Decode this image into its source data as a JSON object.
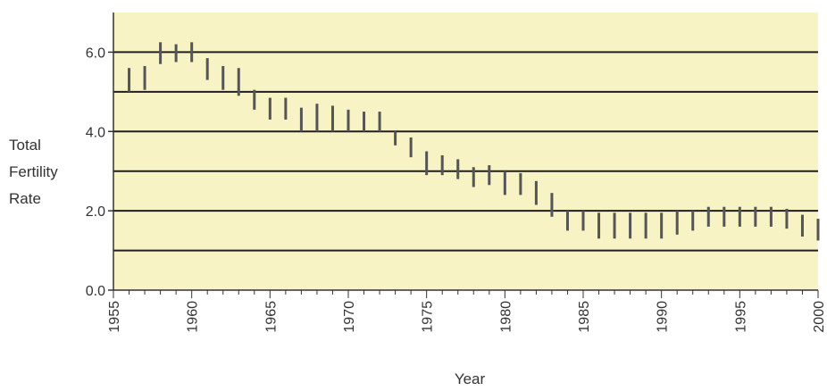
{
  "chart_data": {
    "type": "bar",
    "title": "",
    "xlabel": "Year",
    "ylabel_lines": [
      "Total",
      "Fertility",
      "Rate"
    ],
    "xlim": [
      1955,
      2000
    ],
    "ylim": [
      0,
      7
    ],
    "y_ticks": [
      0,
      2,
      4,
      6
    ],
    "y_tick_labels": [
      "0.0",
      "2.0",
      "4.0",
      "6.0"
    ],
    "x_ticks": [
      1955,
      1960,
      1965,
      1970,
      1975,
      1980,
      1985,
      1990,
      1995,
      2000
    ],
    "x_tick_labels": [
      "1955",
      "1960",
      "1965",
      "1970",
      "1975",
      "1980",
      "1985",
      "1990",
      "1995",
      "2000"
    ],
    "reference_lines": [
      1,
      2,
      3,
      4,
      5,
      6
    ],
    "grid": false,
    "legend": "none",
    "colors": {
      "plot_background": "#f7f3c4",
      "reference_line": "#1f1f1f",
      "marker": "#555555",
      "axis": "#333333"
    },
    "series": [
      {
        "years": [
          1956,
          1957,
          1958,
          1959,
          1960,
          1961,
          1962,
          1963,
          1964,
          1965,
          1966,
          1967,
          1968,
          1969,
          1970,
          1971,
          1972,
          1973,
          1974,
          1975,
          1976,
          1977,
          1978,
          1979,
          1980,
          1981,
          1982,
          1983,
          1984,
          1985,
          1986,
          1987,
          1988,
          1989,
          1990,
          1991,
          1992,
          1993,
          1994,
          1995,
          1996,
          1997,
          1998,
          1999,
          2000
        ],
        "low": [
          5.0,
          5.05,
          5.7,
          5.75,
          5.75,
          5.3,
          5.05,
          4.9,
          4.55,
          4.3,
          4.3,
          4.0,
          4.0,
          4.0,
          4.0,
          4.0,
          4.0,
          3.65,
          3.35,
          2.9,
          2.9,
          2.8,
          2.6,
          2.65,
          2.4,
          2.4,
          2.15,
          1.85,
          1.5,
          1.5,
          1.3,
          1.3,
          1.3,
          1.3,
          1.3,
          1.4,
          1.5,
          1.6,
          1.6,
          1.6,
          1.6,
          1.6,
          1.55,
          1.35,
          1.25
        ],
        "high": [
          5.6,
          5.65,
          6.25,
          6.2,
          6.25,
          5.85,
          5.65,
          5.6,
          5.05,
          4.85,
          4.85,
          4.6,
          4.7,
          4.65,
          4.55,
          4.5,
          4.5,
          4.0,
          3.85,
          3.5,
          3.4,
          3.3,
          3.1,
          3.15,
          3.0,
          2.95,
          2.75,
          2.45,
          2.0,
          2.0,
          1.95,
          1.95,
          1.95,
          1.95,
          1.95,
          2.0,
          2.0,
          2.1,
          2.1,
          2.1,
          2.1,
          2.1,
          2.05,
          1.9,
          1.8
        ]
      }
    ]
  }
}
